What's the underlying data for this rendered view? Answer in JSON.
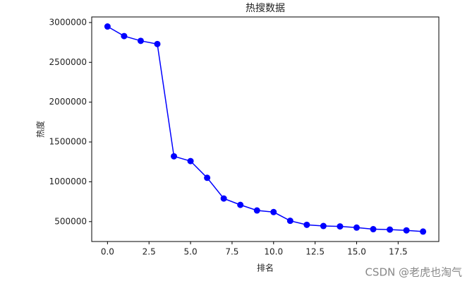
{
  "chart_data": {
    "type": "line",
    "title": "热搜数据",
    "xlabel": "排名",
    "ylabel": "热度",
    "x": [
      0,
      1,
      2,
      3,
      4,
      5,
      6,
      7,
      8,
      9,
      10,
      11,
      12,
      13,
      14,
      15,
      16,
      17,
      18,
      19
    ],
    "values": [
      2950000,
      2830000,
      2770000,
      2730000,
      1320000,
      1260000,
      1050000,
      790000,
      710000,
      640000,
      620000,
      510000,
      460000,
      445000,
      440000,
      425000,
      405000,
      400000,
      390000,
      375000
    ],
    "color": "#0000ff",
    "xlim": [
      -0.95,
      19.95
    ],
    "xticks": [
      {
        "value": 0,
        "label": "0.0"
      },
      {
        "value": 2.5,
        "label": "2.5"
      },
      {
        "value": 5,
        "label": "5.0"
      },
      {
        "value": 7.5,
        "label": "7.5"
      },
      {
        "value": 10,
        "label": "10.0"
      },
      {
        "value": 12.5,
        "label": "12.5"
      },
      {
        "value": 15,
        "label": "15.0"
      },
      {
        "value": 17.5,
        "label": "17.5"
      }
    ],
    "ylim": [
      250000,
      3070000
    ],
    "yticks": [
      500000,
      1000000,
      1500000,
      2000000,
      2500000,
      3000000
    ],
    "watermark": "CSDN @老虎也淘气"
  }
}
